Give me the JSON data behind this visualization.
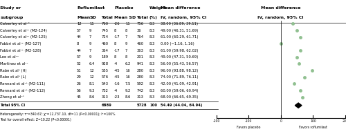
{
  "studies": [
    {
      "label": "Calverley et al¹°",
      "r_mean": 12,
      "r_sd": 11,
      "r_n": 760,
      "p_mean": -26,
      "p_sd": 11,
      "p_n": 756,
      "weight": 8.3,
      "md": 38.0,
      "ci_lo": 36.89,
      "ci_hi": 39.11
    },
    {
      "label": "Calverley et al¹¹ (M2-124)",
      "r_mean": 57,
      "r_sd": 9,
      "r_n": 745,
      "p_mean": 8,
      "p_sd": 8,
      "p_n": 36,
      "weight": 8.3,
      "md": 49.0,
      "ci_lo": 46.31,
      "ci_hi": 51.69
    },
    {
      "label": "Calverley et al¹¹ (M2-125)",
      "r_mean": 44,
      "r_sd": 7,
      "r_n": 724,
      "p_mean": -17,
      "p_sd": 7,
      "p_n": 764,
      "weight": 8.3,
      "md": 61.0,
      "ci_lo": 60.29,
      "ci_hi": 61.71
    },
    {
      "label": "Fabbri et al¹² (M2-127)",
      "r_mean": 8,
      "r_sd": 9,
      "r_n": 460,
      "p_mean": 8,
      "p_sd": 9,
      "p_n": 460,
      "weight": 8.3,
      "md": 0.0,
      "ci_lo": -1.16,
      "ci_hi": 1.16
    },
    {
      "label": "Fabbri et al¹² (M2-128)",
      "r_mean": 44,
      "r_sd": 7,
      "r_n": 364,
      "p_mean": -17,
      "p_sd": 7,
      "p_n": 363,
      "weight": 8.3,
      "md": 61.0,
      "ci_lo": 59.98,
      "ci_hi": 62.02
    },
    {
      "label": "Lee et al¹⁴",
      "r_mean": 57,
      "r_sd": 9,
      "r_n": 189,
      "p_mean": 8,
      "p_sd": 8,
      "p_n": 201,
      "weight": 8.3,
      "md": 49.0,
      "ci_lo": 47.31,
      "ci_hi": 50.69
    },
    {
      "label": "Martinez et al¹⁷",
      "r_mean": 52,
      "r_sd": 6.4,
      "r_n": 928,
      "p_mean": -4,
      "p_sd": 6.2,
      "p_n": 941,
      "weight": 8.3,
      "md": 56.0,
      "ci_lo": 55.43,
      "ci_hi": 56.57
    },
    {
      "label": "Rabe et al⁸ (H)",
      "r_mean": 51,
      "r_sd": 12,
      "r_n": 555,
      "p_mean": -45,
      "p_sd": 16,
      "p_n": 280,
      "weight": 8.3,
      "md": 96.0,
      "ci_lo": 93.88,
      "ci_hi": 98.12
    },
    {
      "label": "Rabe et al⁸ (L)",
      "r_mean": 29,
      "r_sd": 12,
      "r_n": 576,
      "p_mean": -45,
      "p_sd": 16,
      "p_n": 280,
      "weight": 8.3,
      "md": 74.0,
      "ci_lo": 71.89,
      "ci_hi": 76.11
    },
    {
      "label": "Rennard et al¹³ (M2-111)",
      "r_mean": 26,
      "r_sd": 8.1,
      "r_n": 543,
      "p_mean": -16,
      "p_sd": 7.5,
      "p_n": 592,
      "weight": 8.3,
      "md": 42.0,
      "ci_lo": 41.09,
      "ci_hi": 42.91
    },
    {
      "label": "Rennard et al¹³ (M2-112)",
      "r_mean": 56,
      "r_sd": 9.3,
      "r_n": 732,
      "p_mean": -4,
      "p_sd": 9.2,
      "p_n": 742,
      "weight": 8.3,
      "md": 60.0,
      "ci_lo": 59.06,
      "ci_hi": 60.94
    },
    {
      "label": "Zheng et al¹⁶",
      "r_mean": 45,
      "r_sd": 8.6,
      "r_n": 313,
      "p_mean": -23,
      "p_sd": 8.6,
      "p_n": 313,
      "weight": 8.3,
      "md": 68.0,
      "ci_lo": 66.65,
      "ci_hi": 69.35
    }
  ],
  "total_label": "Total 95% CI",
  "total_n_rofl": 6889,
  "total_n_plac": 5728,
  "total_weight": 100,
  "total_md": 54.49,
  "total_ci_lo": 44.04,
  "total_ci_hi": 64.94,
  "heterogeneity_text": "Heterogeneity: τ²=340.67; χ²=12,737.10, df=11 (P<0.00001); I²=100%",
  "overall_effect_text": "Test for overall effect: Z=10.22 (P<0.00001)",
  "axis_ticks": [
    -200,
    -100,
    0,
    100,
    200
  ],
  "axis_lo": -200,
  "axis_hi": 200,
  "favors_left": "Favors placebo",
  "favors_right": "Favors roflumilast",
  "forest_bg": "#ffffff",
  "dot_color": "#90c090",
  "diamond_color": "#000000",
  "line_color": "#000000",
  "text_color": "#000000",
  "header_color": "#000000",
  "fig_width": 5.0,
  "fig_height": 1.97
}
